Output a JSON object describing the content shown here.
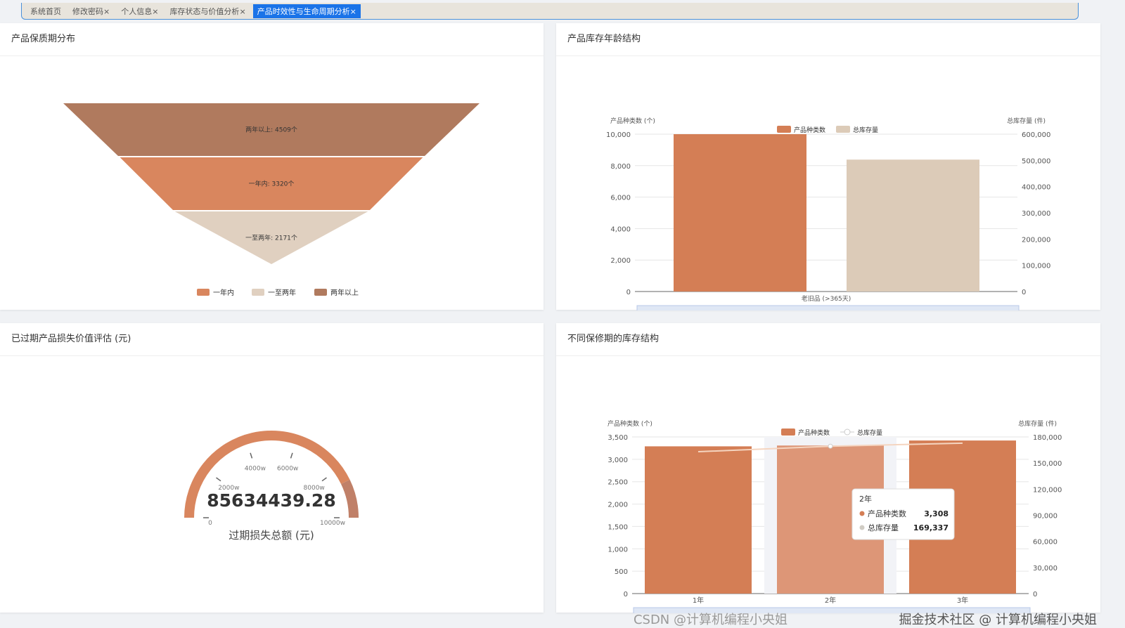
{
  "tabs": [
    {
      "label": "系统首页"
    },
    {
      "label": "修改密码",
      "close": "×"
    },
    {
      "label": "个人信息",
      "close": "×"
    },
    {
      "label": "库存状态与价值分析",
      "close": "×"
    },
    {
      "label": "产品时效性与生命周期分析",
      "close": "×",
      "active": true
    }
  ],
  "panels": {
    "funnel": {
      "title": "产品保质期分布"
    },
    "age": {
      "title": "产品库存年龄结构"
    },
    "gauge": {
      "title": "已过期产品损失价值评估 (元)"
    },
    "warranty": {
      "title": "不同保修期的库存结构"
    }
  },
  "colors": {
    "orange": "#d47e55",
    "dark": "#b07a5e",
    "beige": "#dccbb8",
    "light": "#dd9677"
  },
  "chart_data": [
    {
      "type": "funnel",
      "series": [
        {
          "name": "两年以上",
          "value": 4509,
          "label": "两年以上: 4509个",
          "color": "#b07a5e"
        },
        {
          "name": "一年内",
          "value": 3320,
          "label": "一年内: 3320个",
          "color": "#d9865e"
        },
        {
          "name": "一至两年",
          "value": 2171,
          "label": "一至两年: 2171个",
          "color": "#e0d0c0"
        }
      ],
      "legend": [
        "一年内",
        "一至两年",
        "两年以上"
      ],
      "legend_placement": "bottom"
    },
    {
      "type": "bar",
      "categories": [
        "老旧品 (>365天)"
      ],
      "series": [
        {
          "name": "产品种类数",
          "values": [
            10000
          ],
          "axis": "left"
        },
        {
          "name": "总库存量",
          "values": [
            503000
          ],
          "axis": "right"
        }
      ],
      "ylabel_left": "产品种类数 (个)",
      "ylabel_right": "总库存量 (件)",
      "ylim_left": [
        0,
        10000
      ],
      "ylim_right": [
        0,
        600000
      ],
      "yticks_left": [
        "0",
        "2,000",
        "4,000",
        "6,000",
        "8,000",
        "10,000"
      ],
      "yticks_right": [
        "0",
        "100,000",
        "200,000",
        "300,000",
        "400,000",
        "500,000",
        "600,000"
      ],
      "legend_placement": "top"
    },
    {
      "type": "gauge",
      "value": 85634439.28,
      "value_label": "85634439.28",
      "min": 0,
      "max": 100000000,
      "ticks": [
        "0",
        "2000w",
        "4000w",
        "6000w",
        "8000w",
        "10000w"
      ],
      "caption": "过期损失总额 (元)"
    },
    {
      "type": "bar",
      "categories": [
        "1年",
        "2年",
        "3年"
      ],
      "series": [
        {
          "name": "产品种类数",
          "values": [
            3290,
            3308,
            3420
          ],
          "axis": "left"
        },
        {
          "name": "总库存量",
          "type": "line",
          "values": [
            163000,
            169337,
            172800
          ],
          "axis": "right"
        }
      ],
      "ylabel_left": "产品种类数 (个)",
      "ylabel_right": "总库存量 (件)",
      "ylim_left": [
        0,
        3500
      ],
      "ylim_right": [
        0,
        180000
      ],
      "yticks_left": [
        "0",
        "500",
        "1,000",
        "1,500",
        "2,000",
        "2,500",
        "3,000",
        "3,500"
      ],
      "yticks_right": [
        "0",
        "30,000",
        "60,000",
        "90,000",
        "120,000",
        "150,000",
        "180,000"
      ],
      "legend_placement": "top",
      "tooltip": {
        "title": "2年",
        "rows": [
          {
            "name": "产品种类数",
            "value": "3,308"
          },
          {
            "name": "总库存量",
            "value": "169,337"
          }
        ]
      }
    }
  ],
  "watermark": {
    "line1": "掘金技术社区 @ 计算机编程小央姐",
    "line2": "CSDN @计算机编程小央姐"
  }
}
